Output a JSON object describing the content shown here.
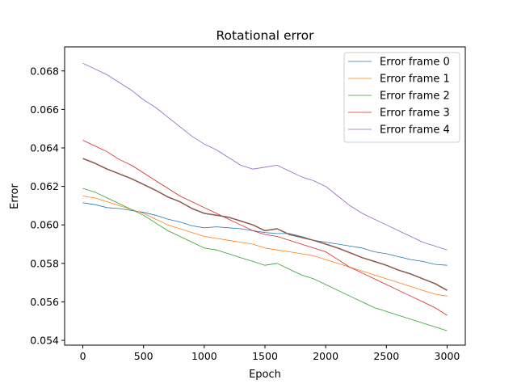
{
  "chart_data": {
    "type": "line",
    "title": "Rotational error",
    "xlabel": "Epoch",
    "ylabel": "Error",
    "xlim": [
      -150,
      3150
    ],
    "ylim": [
      0.05375,
      0.06925
    ],
    "xticks": [
      0,
      500,
      1000,
      1500,
      2000,
      2500,
      3000
    ],
    "yticks": [
      0.054,
      0.056,
      0.058,
      0.06,
      0.062,
      0.064,
      0.066,
      0.068
    ],
    "xtick_labels": [
      "0",
      "500",
      "1000",
      "1500",
      "2000",
      "2500",
      "3000"
    ],
    "ytick_labels": [
      "0.054",
      "0.056",
      "0.058",
      "0.060",
      "0.062",
      "0.064",
      "0.066",
      "0.068"
    ],
    "grid": false,
    "legend_position": "top-right",
    "series": [
      {
        "name": "Error frame 0",
        "color": "#1f77b4",
        "x": [
          0,
          100,
          200,
          300,
          400,
          500,
          600,
          700,
          800,
          900,
          1000,
          1100,
          1200,
          1300,
          1400,
          1500,
          1600,
          1700,
          1800,
          1900,
          2000,
          2100,
          2200,
          2300,
          2400,
          2500,
          2600,
          2700,
          2800,
          2900,
          3000
        ],
        "y": [
          0.06115,
          0.06105,
          0.0609,
          0.06085,
          0.06075,
          0.06065,
          0.0605,
          0.0603,
          0.06015,
          0.05995,
          0.05985,
          0.0599,
          0.05985,
          0.0598,
          0.0597,
          0.0596,
          0.05955,
          0.05955,
          0.0594,
          0.0592,
          0.0591,
          0.059,
          0.0589,
          0.0588,
          0.0586,
          0.0585,
          0.05835,
          0.0582,
          0.0581,
          0.05795,
          0.0579
        ]
      },
      {
        "name": "Error frame 1",
        "color": "#ff7f0e",
        "x": [
          0,
          100,
          200,
          300,
          400,
          500,
          600,
          700,
          800,
          900,
          1000,
          1100,
          1200,
          1300,
          1400,
          1500,
          1600,
          1700,
          1800,
          1900,
          2000,
          2100,
          2200,
          2300,
          2400,
          2500,
          2600,
          2700,
          2800,
          2900,
          3000
        ],
        "y": [
          0.0615,
          0.0614,
          0.0612,
          0.061,
          0.0608,
          0.0606,
          0.0603,
          0.06,
          0.0598,
          0.0596,
          0.0594,
          0.0593,
          0.0592,
          0.0591,
          0.059,
          0.0588,
          0.0587,
          0.0586,
          0.0585,
          0.0584,
          0.0582,
          0.058,
          0.0578,
          0.0576,
          0.0574,
          0.0572,
          0.057,
          0.0568,
          0.0566,
          0.0564,
          0.0563
        ]
      },
      {
        "name": "Error frame 2",
        "color": "#2ca02c",
        "x": [
          0,
          100,
          200,
          300,
          400,
          500,
          600,
          700,
          800,
          900,
          1000,
          1100,
          1200,
          1300,
          1400,
          1500,
          1600,
          1700,
          1800,
          1900,
          2000,
          2100,
          2200,
          2300,
          2400,
          2500,
          2600,
          2700,
          2800,
          2900,
          3000
        ],
        "y": [
          0.0619,
          0.0617,
          0.0614,
          0.0611,
          0.0608,
          0.0605,
          0.0601,
          0.0597,
          0.0594,
          0.0591,
          0.0588,
          0.0587,
          0.0585,
          0.0583,
          0.0581,
          0.0579,
          0.058,
          0.0577,
          0.0574,
          0.0572,
          0.0569,
          0.0566,
          0.0563,
          0.056,
          0.0557,
          0.0555,
          0.0553,
          0.0551,
          0.0549,
          0.0547,
          0.0545
        ]
      },
      {
        "name": "Error frame 3",
        "color": "#d62728",
        "x": [
          0,
          100,
          200,
          300,
          400,
          500,
          600,
          700,
          800,
          900,
          1000,
          1100,
          1200,
          1300,
          1400,
          1500,
          1600,
          1700,
          1800,
          1900,
          2000,
          2100,
          2200,
          2300,
          2400,
          2500,
          2600,
          2700,
          2800,
          2900,
          3000
        ],
        "y": [
          0.0644,
          0.0641,
          0.0638,
          0.0634,
          0.0631,
          0.0627,
          0.0623,
          0.0619,
          0.0615,
          0.0612,
          0.0609,
          0.0606,
          0.0603,
          0.06,
          0.0597,
          0.0595,
          0.0594,
          0.0592,
          0.059,
          0.0588,
          0.0586,
          0.0582,
          0.0578,
          0.0575,
          0.0572,
          0.0569,
          0.0566,
          0.0563,
          0.056,
          0.0557,
          0.0553
        ]
      },
      {
        "name": "Error frame 4",
        "color": "#9467bd",
        "x": [
          0,
          100,
          200,
          300,
          400,
          500,
          600,
          700,
          800,
          900,
          1000,
          1100,
          1200,
          1300,
          1400,
          1500,
          1600,
          1700,
          1800,
          1900,
          2000,
          2100,
          2200,
          2300,
          2400,
          2500,
          2600,
          2700,
          2800,
          2900,
          3000
        ],
        "y": [
          0.0684,
          0.0681,
          0.0678,
          0.0674,
          0.067,
          0.0665,
          0.0661,
          0.0656,
          0.0651,
          0.0646,
          0.0642,
          0.0639,
          0.0635,
          0.0631,
          0.0629,
          0.063,
          0.0631,
          0.0628,
          0.0625,
          0.0623,
          0.062,
          0.0615,
          0.061,
          0.0606,
          0.0603,
          0.06,
          0.0597,
          0.0594,
          0.0591,
          0.0589,
          0.0587
        ]
      },
      {
        "color": "#8c564b",
        "x": [
          0,
          100,
          200,
          300,
          400,
          500,
          600,
          700,
          800,
          900,
          1000,
          1100,
          1200,
          1300,
          1400,
          1500,
          1600,
          1700,
          1800,
          1900,
          2000,
          2100,
          2200,
          2300,
          2400,
          2500,
          2600,
          2700,
          2800,
          2900,
          3000
        ],
        "y": [
          0.06345,
          0.0632,
          0.0629,
          0.06265,
          0.0624,
          0.0621,
          0.0618,
          0.06145,
          0.0612,
          0.06085,
          0.0606,
          0.0605,
          0.0604,
          0.0602,
          0.06,
          0.0597,
          0.0598,
          0.0595,
          0.05935,
          0.0592,
          0.059,
          0.0588,
          0.05855,
          0.0583,
          0.0581,
          0.0579,
          0.05765,
          0.05745,
          0.0572,
          0.05695,
          0.0566
        ],
        "linewidth": 1.5
      }
    ]
  }
}
